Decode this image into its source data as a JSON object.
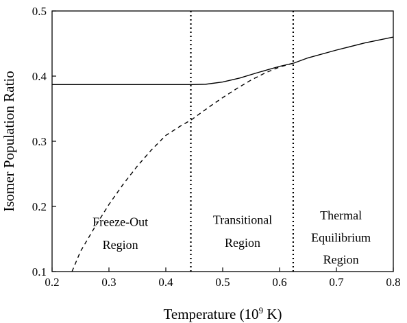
{
  "chart_data": {
    "type": "line",
    "title": "",
    "xlabel": "Temperature (10",
    "xlabel_sup": "9",
    "xlabel_suffix": " K)",
    "ylabel": "Isomer Population Ratio",
    "xlim": [
      0.2,
      0.8
    ],
    "ylim": [
      0.1,
      0.5
    ],
    "xticks": [
      "0.2",
      "0.3",
      "0.4",
      "0.5",
      "0.6",
      "0.7",
      "0.8"
    ],
    "yticks": [
      "0.1",
      "0.2",
      "0.3",
      "0.4",
      "0.5"
    ],
    "grid": false,
    "series": [
      {
        "style": "solid",
        "x": [
          0.2,
          0.25,
          0.3,
          0.35,
          0.4,
          0.445,
          0.47,
          0.5,
          0.53,
          0.56,
          0.6,
          0.625,
          0.65,
          0.7,
          0.75,
          0.8
        ],
        "y": [
          0.387,
          0.387,
          0.387,
          0.387,
          0.387,
          0.387,
          0.3875,
          0.391,
          0.397,
          0.405,
          0.415,
          0.42,
          0.428,
          0.44,
          0.451,
          0.46
        ]
      },
      {
        "style": "dashed",
        "x": [
          0.235,
          0.25,
          0.275,
          0.3,
          0.325,
          0.35,
          0.375,
          0.4,
          0.425,
          0.445,
          0.475,
          0.5,
          0.525,
          0.55,
          0.575,
          0.6,
          0.625
        ],
        "y": [
          0.1,
          0.131,
          0.168,
          0.203,
          0.234,
          0.262,
          0.287,
          0.309,
          0.323,
          0.333,
          0.352,
          0.367,
          0.381,
          0.394,
          0.405,
          0.414,
          0.42
        ]
      }
    ],
    "vlines": [
      0.444,
      0.624
    ],
    "regions": [
      {
        "lines": [
          "Freeze-Out",
          "Region"
        ],
        "x": 0.32,
        "y": [
          0.17,
          0.135
        ]
      },
      {
        "lines": [
          "Transitional",
          "Region"
        ],
        "x": 0.535,
        "y": [
          0.173,
          0.138
        ]
      },
      {
        "lines": [
          "Thermal",
          "Equilibrium",
          "Region"
        ],
        "x": 0.708,
        "y": [
          0.18,
          0.146,
          0.112
        ]
      }
    ]
  }
}
